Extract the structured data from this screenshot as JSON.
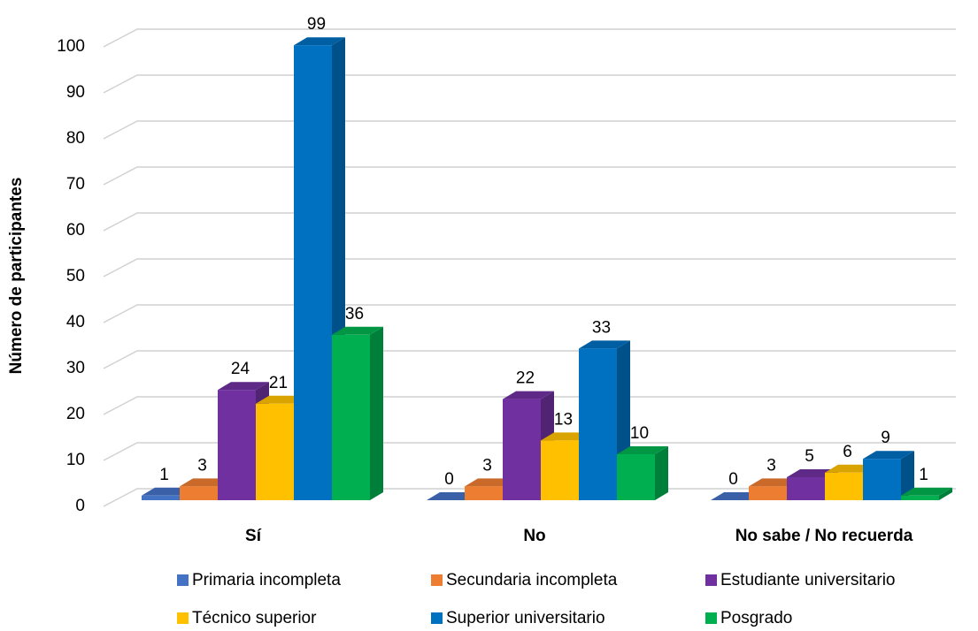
{
  "chart_data": {
    "type": "bar",
    "ylabel": "Número de participantes",
    "ylim": [
      0,
      100
    ],
    "yticks": [
      "0",
      "10",
      "20",
      "30",
      "40",
      "50",
      "60",
      "70",
      "80",
      "90",
      "100"
    ],
    "categories": [
      "Sí",
      "No",
      "No sabe / No recuerda"
    ],
    "series": [
      {
        "name": "Primaria incompleta",
        "values": [
          1,
          0,
          0
        ],
        "color": "#4472c4"
      },
      {
        "name": "Secundaria incompleta",
        "values": [
          3,
          3,
          3
        ],
        "color": "#ed7d31"
      },
      {
        "name": "Estudiante universitario",
        "values": [
          24,
          22,
          5
        ],
        "color": "#7030a0"
      },
      {
        "name": "Técnico superior",
        "values": [
          21,
          13,
          6
        ],
        "color": "#ffc000"
      },
      {
        "name": "Superior universitario",
        "values": [
          99,
          33,
          9
        ],
        "color": "#0070c0"
      },
      {
        "name": "Posgrado",
        "values": [
          36,
          10,
          1
        ],
        "color": "#00b050"
      }
    ],
    "legend_position": "bottom",
    "grid": true
  }
}
